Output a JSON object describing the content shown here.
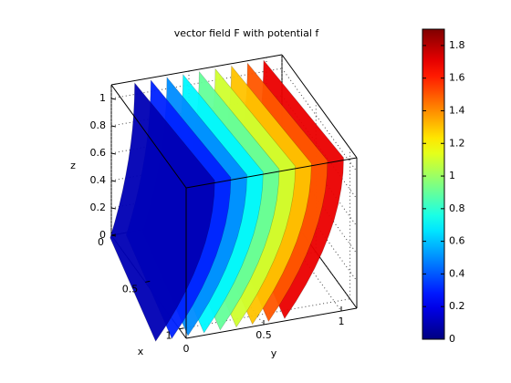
{
  "chart_data": {
    "type": "isosurface3d",
    "title": "vector field F with potential f",
    "xlabel": "x",
    "ylabel": "y",
    "zlabel": "z",
    "xlim": [
      0,
      1.1
    ],
    "ylim": [
      0,
      1.1
    ],
    "zlim": [
      0,
      1.1
    ],
    "xticks": [
      0,
      0.5,
      1
    ],
    "yticks": [
      0,
      0.5,
      1
    ],
    "zticks": [
      0,
      0.2,
      0.4,
      0.6,
      0.8,
      1
    ],
    "isovalues": [
      0.1,
      0.3,
      0.5,
      0.7,
      0.9,
      1.1,
      1.3,
      1.5,
      1.7
    ],
    "colormap": "jet",
    "clim": [
      0,
      1.9
    ],
    "colorbar_ticks": [
      0,
      0.2,
      0.4,
      0.6,
      0.8,
      1,
      1.2,
      1.4,
      1.6,
      1.8
    ],
    "grid": true
  }
}
